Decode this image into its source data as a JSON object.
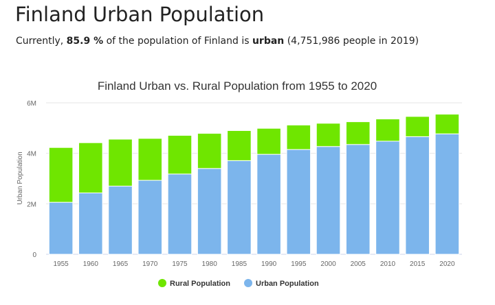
{
  "header": {
    "title": "Finland Urban Population",
    "summary_prefix": "Currently, ",
    "summary_percent": "85.9 %",
    "summary_mid": " of the population of Finland is ",
    "summary_urban": "urban",
    "summary_suffix": " (4,751,986 people in 2019)"
  },
  "chart_data": {
    "type": "bar",
    "stacked": true,
    "title": "Finland Urban vs. Rural Population from 1955 to 2020",
    "xlabel": "",
    "ylabel": "Urban Population",
    "ylim": [
      0,
      6000000
    ],
    "yticks": [
      0,
      2000000,
      4000000,
      6000000
    ],
    "ytick_labels": [
      "0",
      "2M",
      "4M",
      "6M"
    ],
    "grid": true,
    "legend_position": "bottom",
    "categories": [
      "1955",
      "1960",
      "1965",
      "1970",
      "1975",
      "1980",
      "1985",
      "1990",
      "1995",
      "2000",
      "2005",
      "2010",
      "2015",
      "2020"
    ],
    "series": [
      {
        "name": "Urban Population",
        "color": "#7cb5ec",
        "values": [
          2060000,
          2430000,
          2700000,
          2930000,
          3180000,
          3400000,
          3710000,
          3960000,
          4150000,
          4270000,
          4350000,
          4480000,
          4660000,
          4770000
        ]
      },
      {
        "name": "Rural Population",
        "color": "#6fe600",
        "values": [
          2170000,
          1990000,
          1860000,
          1660000,
          1530000,
          1390000,
          1190000,
          1030000,
          970000,
          920000,
          900000,
          880000,
          800000,
          780000
        ]
      }
    ],
    "legend_order": [
      "Rural Population",
      "Urban Population"
    ]
  }
}
